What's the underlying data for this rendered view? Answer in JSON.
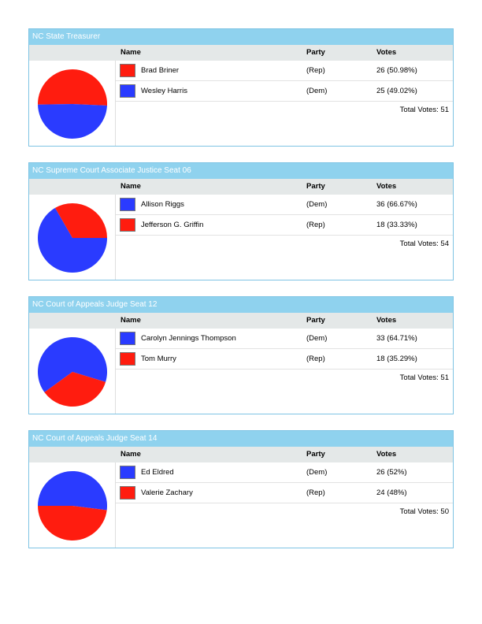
{
  "colors": {
    "Rep": "#ff1c0f",
    "Dem": "#2a3bff",
    "header": "#8fd2ee"
  },
  "columns": {
    "name": "Name",
    "party": "Party",
    "votes": "Votes"
  },
  "races": [
    {
      "title": "NC State Treasurer",
      "total_text": "Total Votes: 51",
      "candidates": [
        {
          "name": "Brad Briner",
          "party": "(Rep)",
          "party_key": "Rep",
          "votes_text": "26 (50.98%)",
          "votes": 26
        },
        {
          "name": "Wesley Harris",
          "party": "(Dem)",
          "party_key": "Dem",
          "votes_text": "25 (49.02%)",
          "votes": 25
        }
      ]
    },
    {
      "title": "NC Supreme Court Associate Justice Seat 06",
      "total_text": "Total Votes: 54",
      "candidates": [
        {
          "name": "Allison Riggs",
          "party": "(Dem)",
          "party_key": "Dem",
          "votes_text": "36 (66.67%)",
          "votes": 36
        },
        {
          "name": "Jefferson G. Griffin",
          "party": "(Rep)",
          "party_key": "Rep",
          "votes_text": "18 (33.33%)",
          "votes": 18
        }
      ]
    },
    {
      "title": "NC Court of Appeals Judge Seat 12",
      "total_text": "Total Votes: 51",
      "candidates": [
        {
          "name": "Carolyn Jennings Thompson",
          "party": "(Dem)",
          "party_key": "Dem",
          "votes_text": "33 (64.71%)",
          "votes": 33
        },
        {
          "name": "Tom Murry",
          "party": "(Rep)",
          "party_key": "Rep",
          "votes_text": "18 (35.29%)",
          "votes": 18
        }
      ]
    },
    {
      "title": "NC Court of Appeals Judge Seat 14",
      "total_text": "Total Votes: 50",
      "candidates": [
        {
          "name": "Ed Eldred",
          "party": "(Dem)",
          "party_key": "Dem",
          "votes_text": "26 (52%)",
          "votes": 26
        },
        {
          "name": "Valerie Zachary",
          "party": "(Rep)",
          "party_key": "Rep",
          "votes_text": "24 (48%)",
          "votes": 24
        }
      ]
    }
  ],
  "chart_data": [
    {
      "type": "pie",
      "categories": [
        "Brad Briner",
        "Wesley Harris"
      ],
      "values": [
        26,
        25
      ]
    },
    {
      "type": "pie",
      "categories": [
        "Allison Riggs",
        "Jefferson G. Griffin"
      ],
      "values": [
        36,
        18
      ]
    },
    {
      "type": "pie",
      "categories": [
        "Carolyn Jennings Thompson",
        "Tom Murry"
      ],
      "values": [
        33,
        18
      ]
    },
    {
      "type": "pie",
      "categories": [
        "Ed Eldred",
        "Valerie Zachary"
      ],
      "values": [
        26,
        24
      ]
    }
  ]
}
